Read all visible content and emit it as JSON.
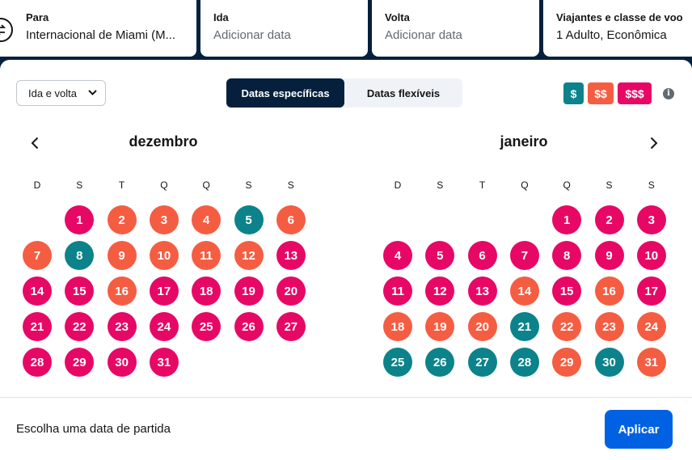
{
  "search": {
    "to": {
      "label": "Para",
      "value": "Internacional de Miami (M..."
    },
    "depart": {
      "label": "Ida",
      "placeholder": "Adicionar data"
    },
    "return": {
      "label": "Volta",
      "placeholder": "Adicionar data"
    },
    "travellers": {
      "label": "Viajantes e classe de voo",
      "value": "1 Adulto, Econômica"
    }
  },
  "calendar": {
    "trip_type": "Ida e volta",
    "mode_tabs": [
      "Datas específicas",
      "Datas flexíveis"
    ],
    "active_mode": 0,
    "price_legend": [
      "$",
      "$$",
      "$$$"
    ],
    "weekdays": [
      "D",
      "S",
      "T",
      "Q",
      "Q",
      "S",
      "S"
    ],
    "months": [
      {
        "name": "dezembro",
        "start_weekday": 1,
        "prices": [
          "high",
          "mid",
          "mid",
          "mid",
          "low",
          "mid",
          "mid",
          "low",
          "mid",
          "mid",
          "mid",
          "mid",
          "high",
          "high",
          "high",
          "mid",
          "high",
          "high",
          "high",
          "high",
          "high",
          "high",
          "high",
          "high",
          "high",
          "high",
          "high",
          "high",
          "high",
          "high",
          "high"
        ]
      },
      {
        "name": "janeiro",
        "start_weekday": 4,
        "prices": [
          "high",
          "high",
          "high",
          "high",
          "high",
          "high",
          "high",
          "high",
          "high",
          "high",
          "high",
          "high",
          "high",
          "mid",
          "high",
          "mid",
          "high",
          "mid",
          "mid",
          "mid",
          "low",
          "mid",
          "mid",
          "mid",
          "low",
          "low",
          "low",
          "low",
          "mid",
          "low",
          "mid"
        ]
      }
    ],
    "colors": {
      "low": "#0c838a",
      "mid": "#f55d42",
      "high": "#e70866"
    }
  },
  "footer": {
    "message": "Escolha uma data de partida",
    "apply_label": "Aplicar"
  }
}
